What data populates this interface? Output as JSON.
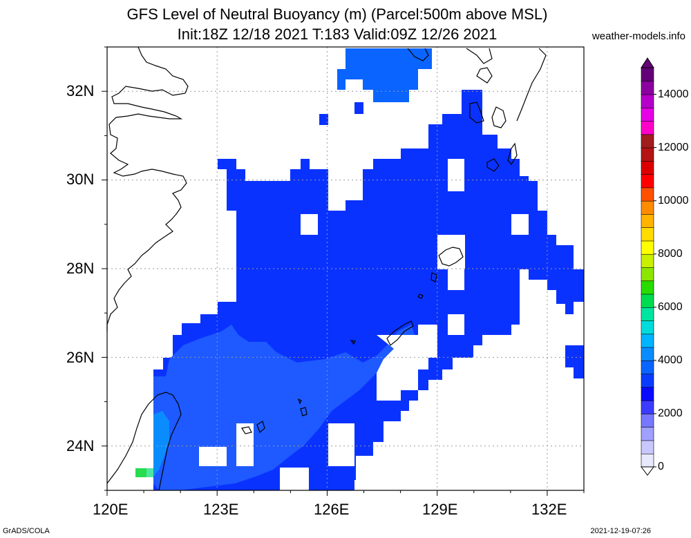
{
  "title_line1": "GFS Level of Neutral Buoyancy (m) (Parcel:500m above MSL)",
  "title_line2": "Init:18Z 12/18 2021 T:183 Valid:09Z 12/26 2021",
  "credit": "weather-models.info",
  "footer_left": "GrADS/COLA",
  "footer_right": "2021-12-19-07:26",
  "map": {
    "lon_range": [
      120,
      133
    ],
    "lat_range": [
      23,
      33
    ],
    "x_ticks": [
      "120E",
      "123E",
      "126E",
      "129E",
      "132E"
    ],
    "y_ticks": [
      "24N",
      "26N",
      "28N",
      "30N",
      "32N"
    ],
    "grid": "dotted"
  },
  "colorbar": {
    "labels": [
      "0",
      "2000",
      "4000",
      "6000",
      "8000",
      "10000",
      "12000",
      "14000"
    ],
    "colors": [
      "#e8e8ff",
      "#c8c8ff",
      "#a0a0ff",
      "#7878ff",
      "#3c3cff",
      "#0a0aff",
      "#0a3cff",
      "#0a64ff",
      "#0a8cff",
      "#00b4ff",
      "#00dcdc",
      "#00e6a0",
      "#00dc50",
      "#28dc00",
      "#8ce600",
      "#c8f000",
      "#ffff00",
      "#ffdc00",
      "#ffb400",
      "#ff8c00",
      "#ff5000",
      "#ff0000",
      "#dc0000",
      "#b41414",
      "#a01e1e",
      "#ff00c8",
      "#e600e6",
      "#b400c8",
      "#8c00a0",
      "#640078"
    ]
  },
  "colors": {
    "field_main": "#0a32ff",
    "field_light": "#1e5aff",
    "field_cyan": "#0a8cff",
    "coast": "#000000"
  }
}
